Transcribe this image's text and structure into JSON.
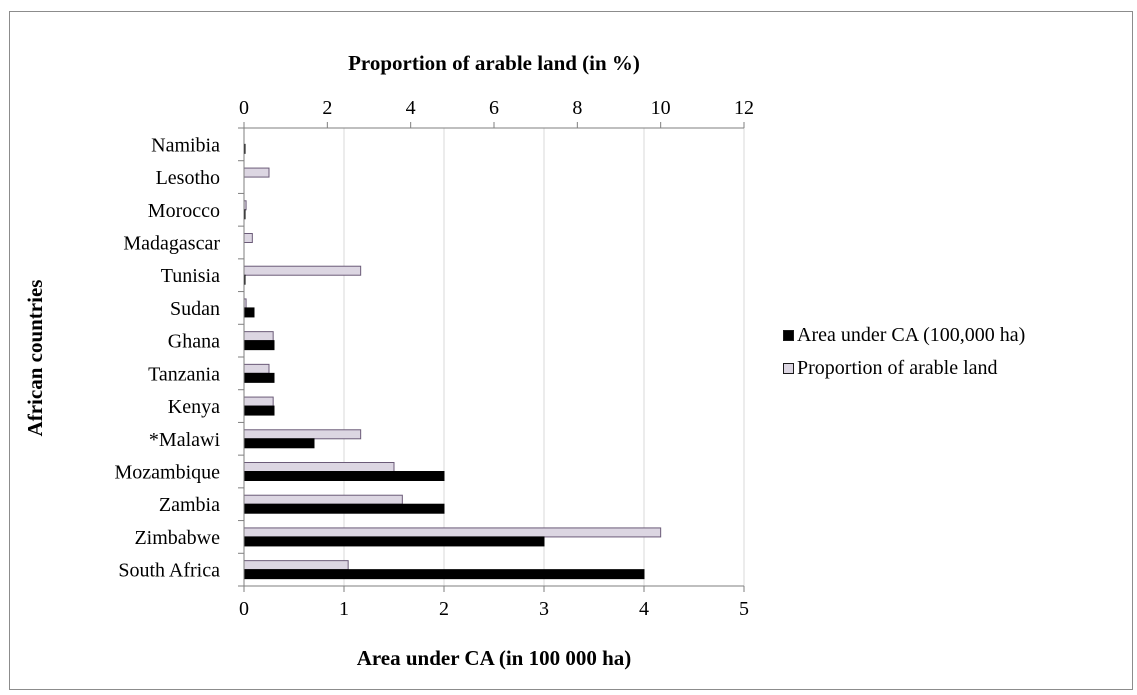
{
  "chart_data": {
    "type": "bar",
    "orientation": "horizontal",
    "categories": [
      "Namibia",
      "Lesotho",
      "Morocco",
      "Madagascar",
      "Tunisia",
      "Sudan",
      "Ghana",
      "Tanzania",
      "Kenya",
      "*Malawi",
      "Mozambique",
      "Zambia",
      "Zimbabwe",
      "South Africa"
    ],
    "series": [
      {
        "name": "Area under CA (100,000 ha)",
        "axis": "bottom",
        "color": "#000000",
        "values": [
          0.01,
          0.0,
          0.01,
          0.0,
          0.01,
          0.1,
          0.3,
          0.3,
          0.3,
          0.7,
          2.0,
          2.0,
          3.0,
          4.0
        ]
      },
      {
        "name": "Proportion of arable land",
        "axis": "top",
        "color": "#dcd6e2",
        "values": [
          0.0,
          0.6,
          0.05,
          0.2,
          2.8,
          0.05,
          0.7,
          0.6,
          0.7,
          2.8,
          3.6,
          3.8,
          10.0,
          2.5
        ]
      }
    ],
    "x_bottom": {
      "label": "Area under CA (in 100 000 ha)",
      "ticks": [
        "0",
        "1",
        "2",
        "3",
        "4",
        "5"
      ],
      "lim": [
        0,
        5
      ]
    },
    "x_top": {
      "label": "Proportion of arable land (in %)",
      "ticks": [
        "0",
        "2",
        "4",
        "6",
        "8",
        "10",
        "12"
      ],
      "lim": [
        0,
        12
      ]
    },
    "ylabel": "African countries",
    "grid": true,
    "legend_position": "right"
  }
}
